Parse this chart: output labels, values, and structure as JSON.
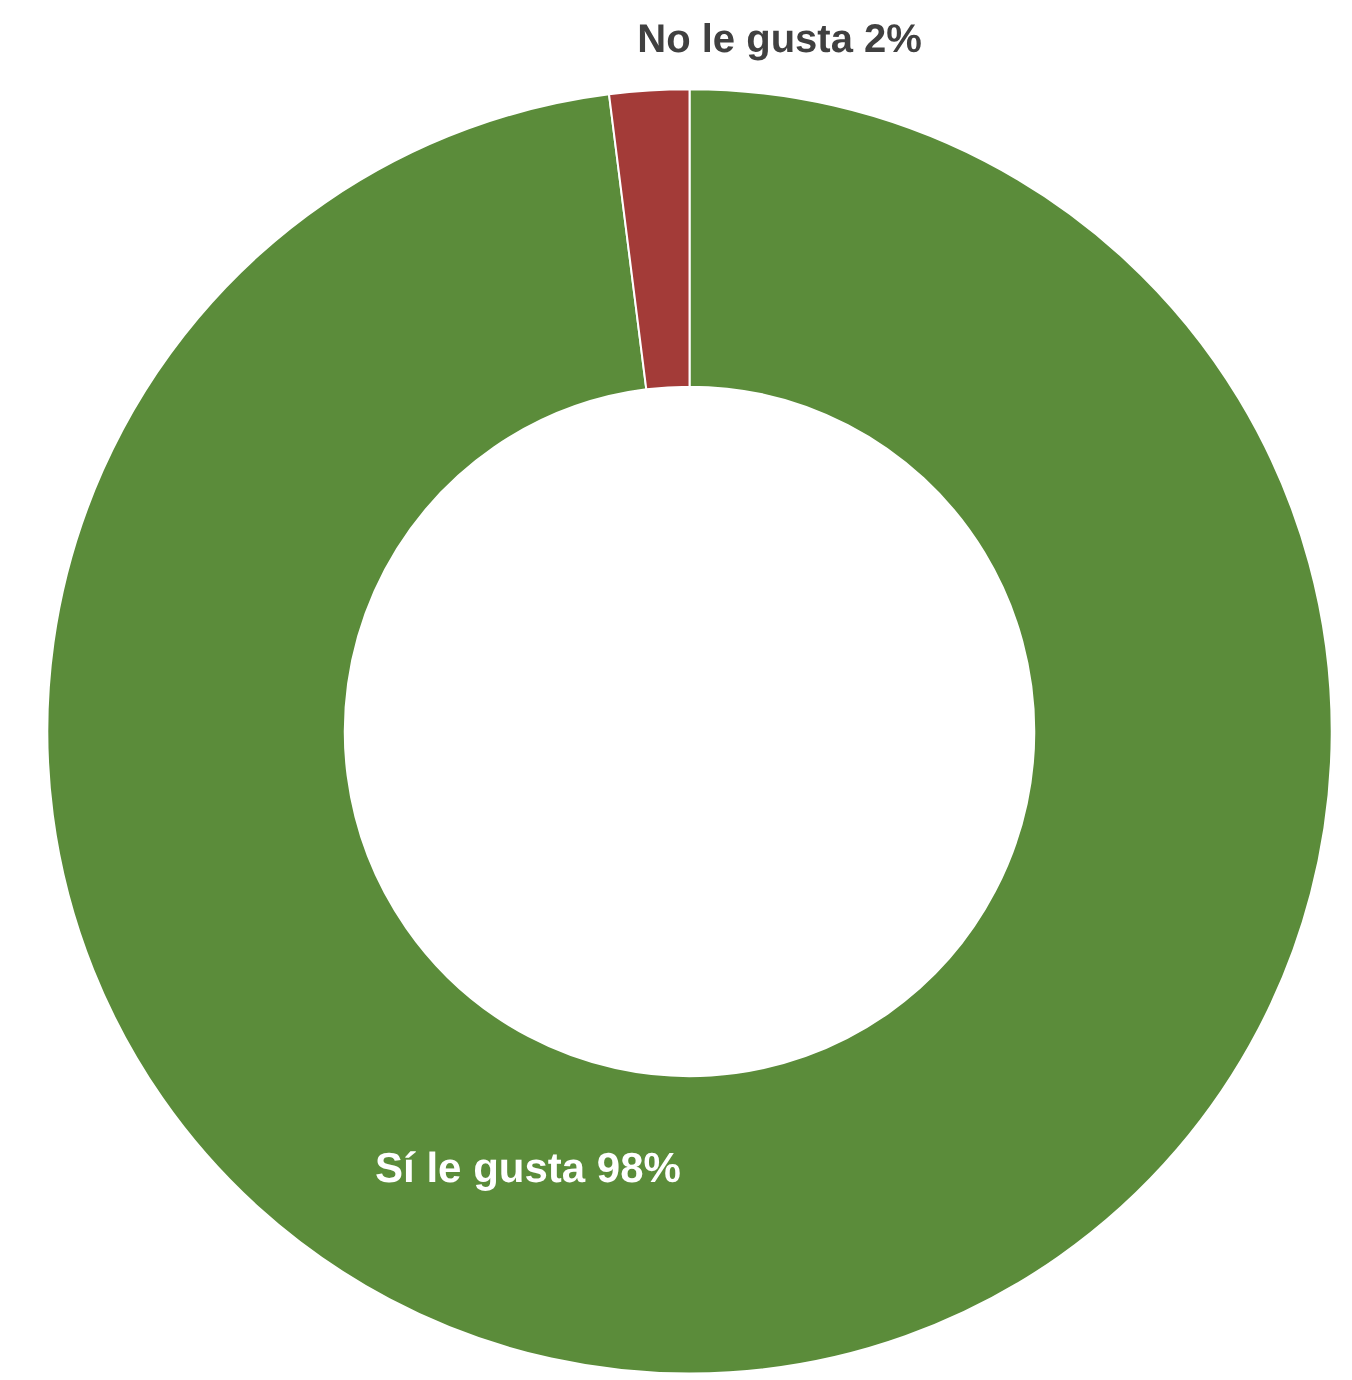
{
  "chart_data": {
    "type": "donut",
    "categories": [
      "Sí le gusta",
      "No le gusta"
    ],
    "values": [
      98,
      2
    ],
    "colors": [
      "#5b8c3a",
      "#a33b38"
    ],
    "value_labels": [
      "98%",
      "2%"
    ],
    "legend": false
  }
}
